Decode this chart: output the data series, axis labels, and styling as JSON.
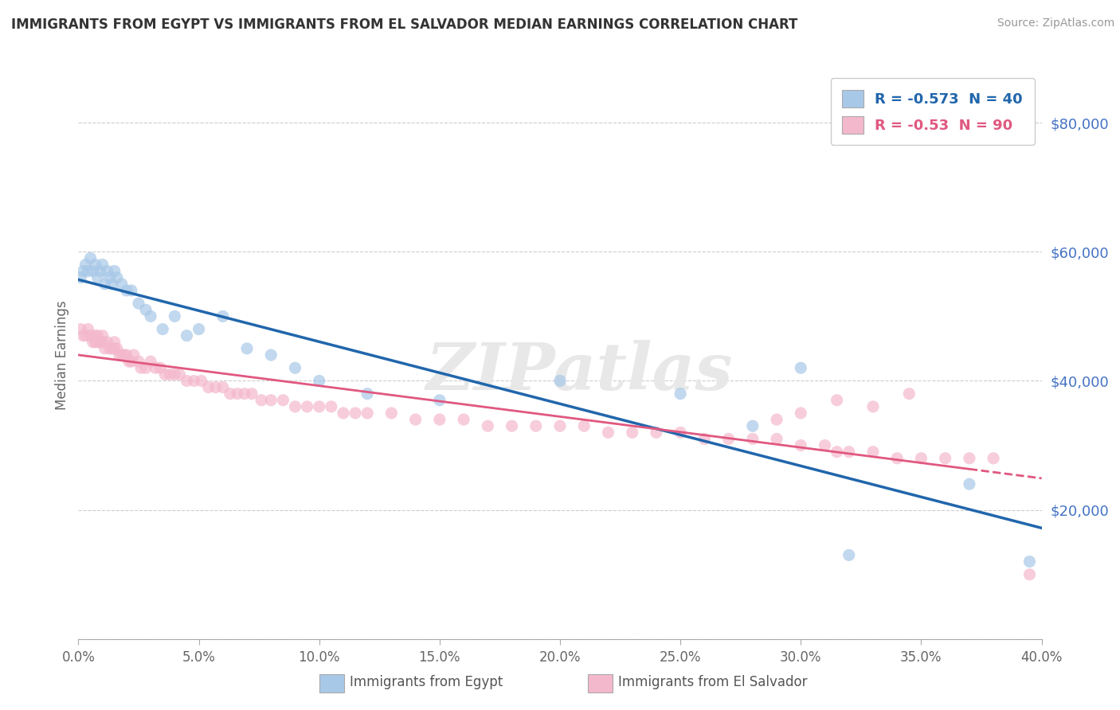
{
  "title": "IMMIGRANTS FROM EGYPT VS IMMIGRANTS FROM EL SALVADOR MEDIAN EARNINGS CORRELATION CHART",
  "source": "Source: ZipAtlas.com",
  "ylabel": "Median Earnings",
  "egypt_R": -0.573,
  "egypt_N": 40,
  "salvador_R": -0.53,
  "salvador_N": 90,
  "egypt_color": "#a8c8e8",
  "salvador_color": "#f4b8cc",
  "egypt_line_color": "#2166ac",
  "salvador_line_color": "#e05880",
  "xlim": [
    0.0,
    0.4
  ],
  "ylim": [
    0,
    88000
  ],
  "yticks": [
    0,
    20000,
    40000,
    60000,
    80000
  ],
  "xtick_vals": [
    0.0,
    0.05,
    0.1,
    0.15,
    0.2,
    0.25,
    0.3,
    0.35,
    0.4
  ],
  "legend_bottom": [
    "Immigrants from Egypt",
    "Immigrants from El Salvador"
  ],
  "egypt_x": [
    0.001,
    0.002,
    0.003,
    0.004,
    0.005,
    0.006,
    0.007,
    0.008,
    0.009,
    0.01,
    0.011,
    0.012,
    0.013,
    0.014,
    0.015,
    0.016,
    0.018,
    0.02,
    0.022,
    0.025,
    0.028,
    0.03,
    0.035,
    0.04,
    0.045,
    0.05,
    0.06,
    0.07,
    0.08,
    0.09,
    0.1,
    0.12,
    0.15,
    0.2,
    0.25,
    0.28,
    0.3,
    0.32,
    0.37,
    0.395
  ],
  "egypt_y": [
    56000,
    57000,
    58000,
    57000,
    59000,
    57000,
    58000,
    56000,
    57000,
    58000,
    55000,
    57000,
    56000,
    55000,
    57000,
    56000,
    55000,
    54000,
    54000,
    52000,
    51000,
    50000,
    48000,
    50000,
    47000,
    48000,
    50000,
    45000,
    44000,
    42000,
    40000,
    38000,
    37000,
    40000,
    38000,
    33000,
    42000,
    13000,
    24000,
    12000
  ],
  "salvador_x": [
    0.001,
    0.002,
    0.003,
    0.004,
    0.005,
    0.006,
    0.007,
    0.007,
    0.008,
    0.008,
    0.009,
    0.01,
    0.01,
    0.011,
    0.012,
    0.013,
    0.014,
    0.015,
    0.015,
    0.016,
    0.017,
    0.018,
    0.019,
    0.02,
    0.021,
    0.022,
    0.023,
    0.025,
    0.026,
    0.028,
    0.03,
    0.032,
    0.034,
    0.036,
    0.038,
    0.04,
    0.042,
    0.045,
    0.048,
    0.051,
    0.054,
    0.057,
    0.06,
    0.063,
    0.066,
    0.069,
    0.072,
    0.076,
    0.08,
    0.085,
    0.09,
    0.095,
    0.1,
    0.105,
    0.11,
    0.115,
    0.12,
    0.13,
    0.14,
    0.15,
    0.16,
    0.17,
    0.18,
    0.19,
    0.2,
    0.21,
    0.22,
    0.23,
    0.24,
    0.25,
    0.26,
    0.27,
    0.28,
    0.29,
    0.3,
    0.31,
    0.315,
    0.32,
    0.33,
    0.34,
    0.35,
    0.36,
    0.37,
    0.38,
    0.29,
    0.3,
    0.315,
    0.33,
    0.345,
    0.395
  ],
  "salvador_y": [
    48000,
    47000,
    47000,
    48000,
    47000,
    46000,
    47000,
    46000,
    46000,
    47000,
    46000,
    46000,
    47000,
    45000,
    46000,
    45000,
    45000,
    46000,
    45000,
    45000,
    44000,
    44000,
    44000,
    44000,
    43000,
    43000,
    44000,
    43000,
    42000,
    42000,
    43000,
    42000,
    42000,
    41000,
    41000,
    41000,
    41000,
    40000,
    40000,
    40000,
    39000,
    39000,
    39000,
    38000,
    38000,
    38000,
    38000,
    37000,
    37000,
    37000,
    36000,
    36000,
    36000,
    36000,
    35000,
    35000,
    35000,
    35000,
    34000,
    34000,
    34000,
    33000,
    33000,
    33000,
    33000,
    33000,
    32000,
    32000,
    32000,
    32000,
    31000,
    31000,
    31000,
    31000,
    30000,
    30000,
    29000,
    29000,
    29000,
    28000,
    28000,
    28000,
    28000,
    28000,
    34000,
    35000,
    37000,
    36000,
    38000,
    10000
  ]
}
